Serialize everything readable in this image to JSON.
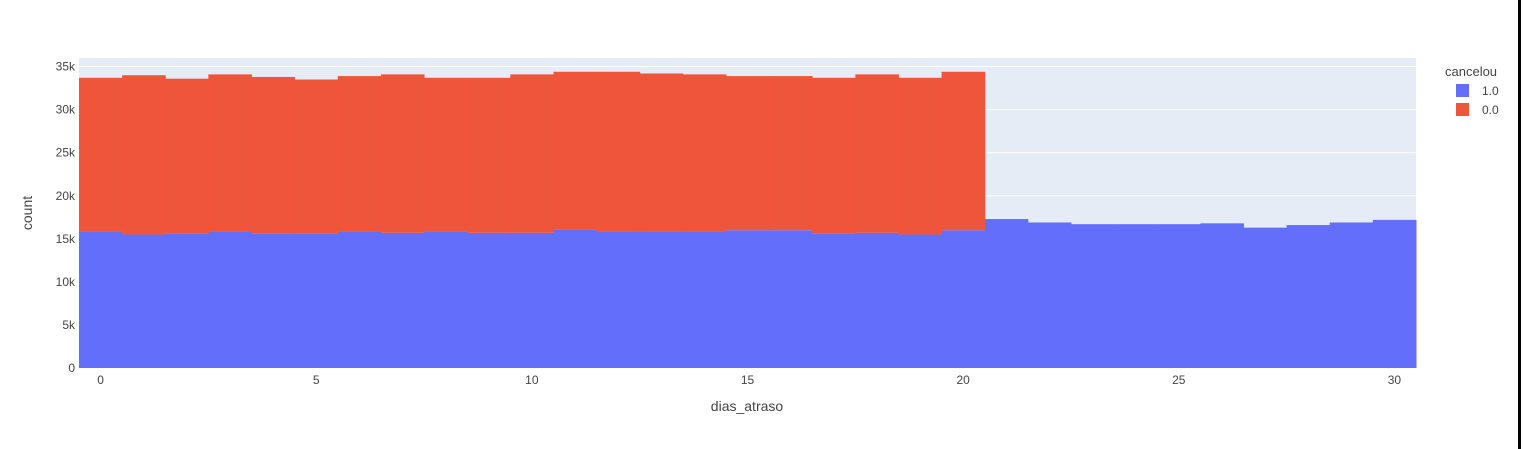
{
  "chart_data": {
    "type": "bar",
    "barmode": "stack",
    "x": [
      0,
      1,
      2,
      3,
      4,
      5,
      6,
      7,
      8,
      9,
      10,
      11,
      12,
      13,
      14,
      15,
      16,
      17,
      18,
      19,
      20,
      21,
      22,
      23,
      24,
      25,
      26,
      27,
      28,
      29,
      30
    ],
    "series": [
      {
        "name": "1.0",
        "color": "#636efa",
        "values": [
          15800,
          15500,
          15600,
          15900,
          15600,
          15600,
          15900,
          15700,
          15800,
          15700,
          15700,
          16100,
          15900,
          15900,
          15900,
          16000,
          16000,
          15600,
          15700,
          15500,
          16000,
          17300,
          16900,
          16700,
          16700,
          16700,
          16800,
          16300,
          16600,
          16900,
          17200
        ]
      },
      {
        "name": "0.0",
        "color": "#ef553b",
        "values": [
          17900,
          18500,
          18000,
          18200,
          18200,
          17900,
          18000,
          18400,
          17900,
          18000,
          18400,
          18300,
          18500,
          18300,
          18200,
          17900,
          17900,
          18100,
          18400,
          18200,
          18400,
          0,
          0,
          0,
          0,
          0,
          0,
          0,
          0,
          0,
          0
        ]
      }
    ],
    "xlabel": "dias_atraso",
    "ylabel": "count",
    "xlim": [
      -0.5,
      30.5
    ],
    "ylim": [
      0,
      36000
    ],
    "xticks": [
      0,
      5,
      10,
      15,
      20,
      25,
      30
    ],
    "yticks": [
      0,
      5000,
      10000,
      15000,
      20000,
      25000,
      30000,
      35000
    ],
    "ytick_labels": [
      "0",
      "5k",
      "10k",
      "15k",
      "20k",
      "25k",
      "30k",
      "35k"
    ],
    "grid": true,
    "plot_bgcolor": "#e5ecf6",
    "legend": {
      "title": "cancelou",
      "placement": "top-right",
      "order": [
        "1.0",
        "0.0"
      ]
    }
  }
}
